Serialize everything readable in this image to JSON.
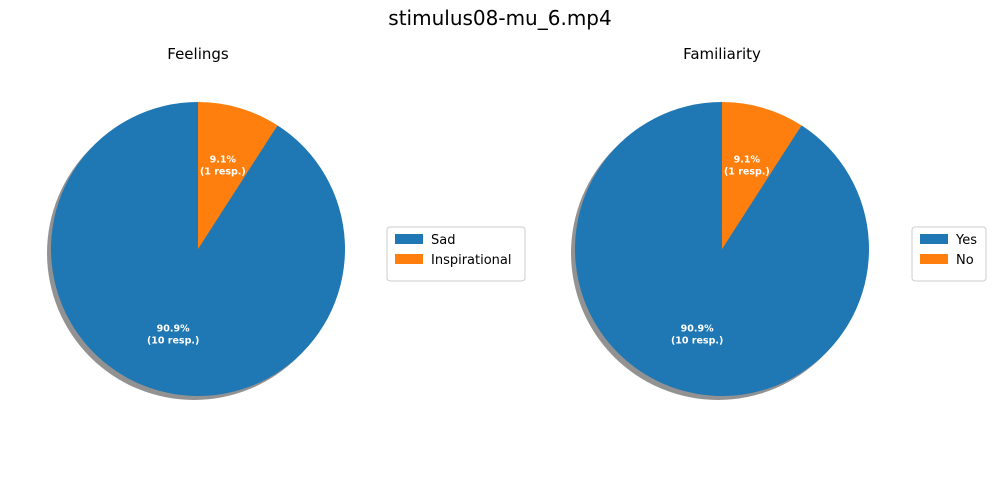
{
  "title": "stimulus08-mu_6.mp4",
  "colors": {
    "series1": "#1f77b4",
    "series2": "#ff7f0e",
    "shadow": "#7f7f7f",
    "label": "#ffffff",
    "legend_border": "#cccccc"
  },
  "chart_data": [
    {
      "type": "pie",
      "title": "Feelings",
      "categories": [
        "Sad",
        "Inspirational"
      ],
      "values": [
        10,
        1
      ],
      "percent_labels": [
        "90.9%",
        "9.1%"
      ],
      "count_labels": [
        "(10 resp.)",
        "(1 resp.)"
      ],
      "start_angle_deg": 90,
      "direction": "counterclockwise",
      "shadow": true,
      "legend_placement": "right"
    },
    {
      "type": "pie",
      "title": "Familiarity",
      "categories": [
        "Yes",
        "No"
      ],
      "values": [
        10,
        1
      ],
      "percent_labels": [
        "90.9%",
        "9.1%"
      ],
      "count_labels": [
        "(10 resp.)",
        "(1 resp.)"
      ],
      "start_angle_deg": 90,
      "direction": "counterclockwise",
      "shadow": true,
      "legend_placement": "right"
    }
  ]
}
